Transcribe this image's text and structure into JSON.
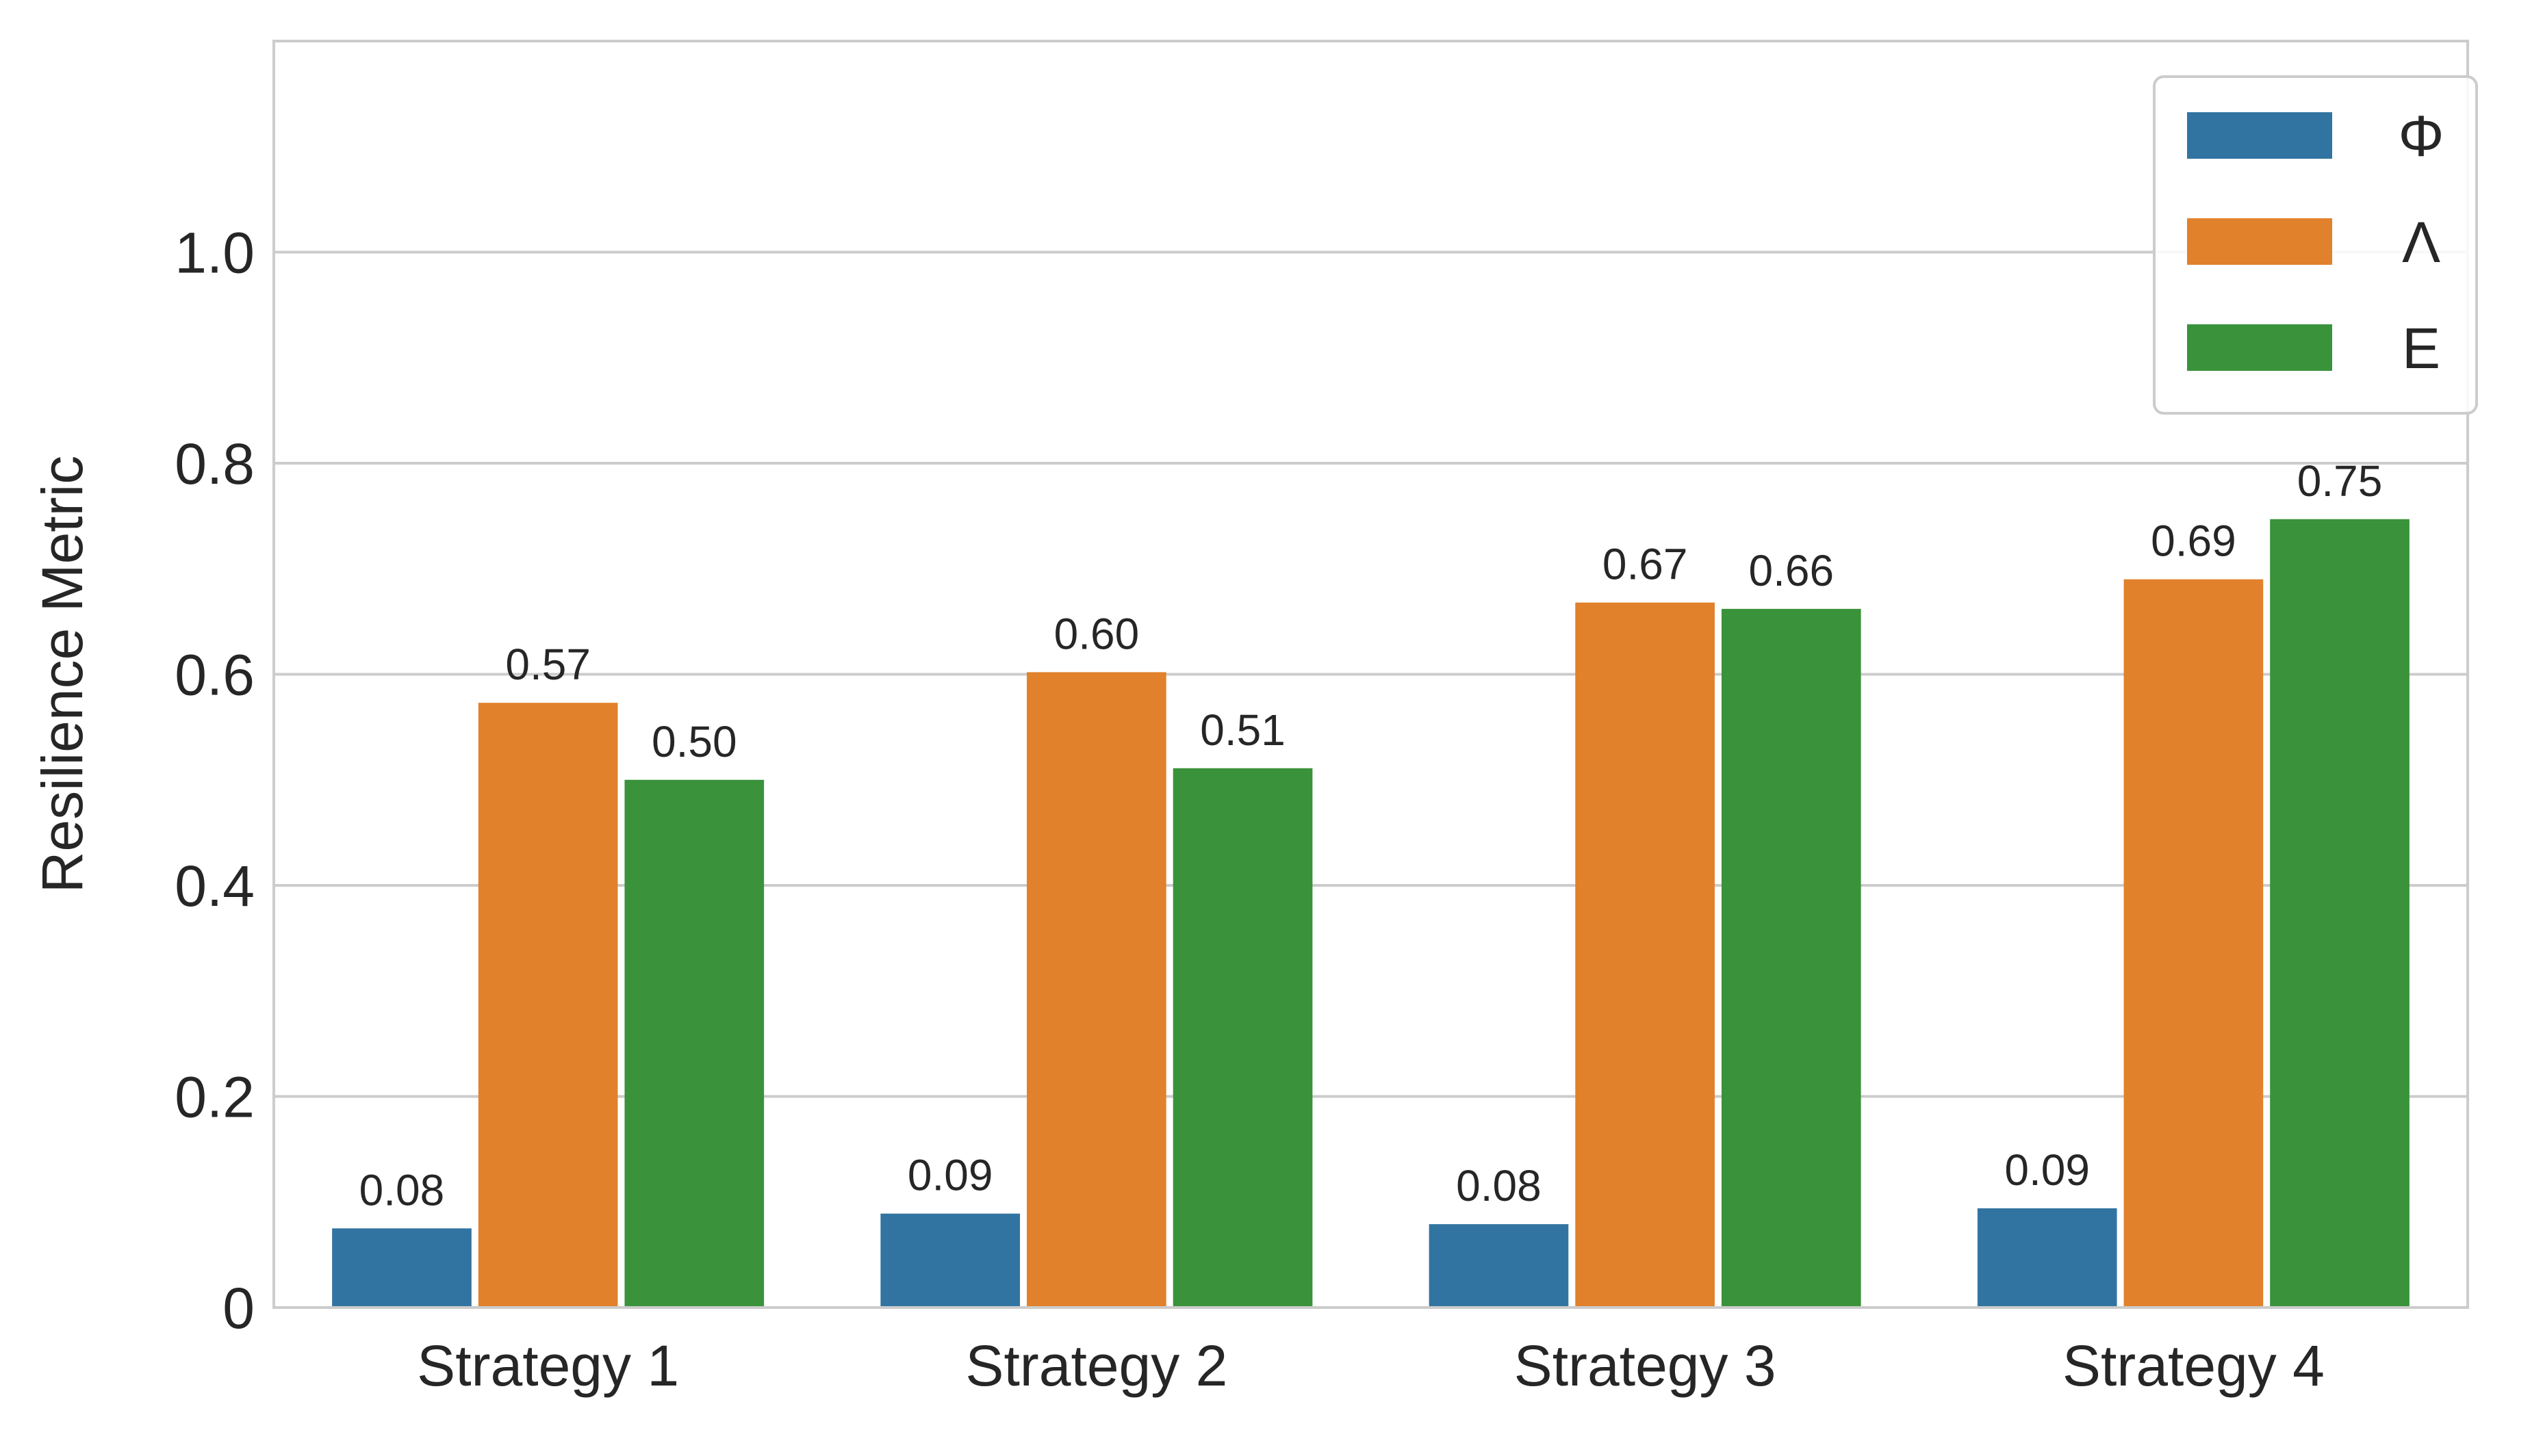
{
  "chart_data": {
    "type": "bar",
    "title": "",
    "xlabel": "",
    "ylabel": "Resilience Metric",
    "ylim": [
      0,
      1.2
    ],
    "yticks": [
      0,
      0.2,
      0.4,
      0.6,
      0.8,
      1.0
    ],
    "ytick_labels": [
      "0",
      "0.2",
      "0.4",
      "0.6",
      "0.8",
      "1.0"
    ],
    "categories": [
      "Strategy 1",
      "Strategy 2",
      "Strategy 3",
      "Strategy 4"
    ],
    "grid": "horizontal",
    "legend_position": "top-right",
    "series": [
      {
        "name": "Φ",
        "color": "#3274a1",
        "values": [
          0.075,
          0.089,
          0.079,
          0.094
        ],
        "labels": [
          "0.08",
          "0.09",
          "0.08",
          "0.09"
        ]
      },
      {
        "name": "Λ",
        "color": "#e1812c",
        "values": [
          0.573,
          0.602,
          0.668,
          0.69
        ],
        "labels": [
          "0.57",
          "0.60",
          "0.67",
          "0.69"
        ]
      },
      {
        "name": "E",
        "color": "#3a923a",
        "values": [
          0.5,
          0.511,
          0.662,
          0.747
        ],
        "labels": [
          "0.50",
          "0.51",
          "0.66",
          "0.75"
        ]
      }
    ]
  }
}
